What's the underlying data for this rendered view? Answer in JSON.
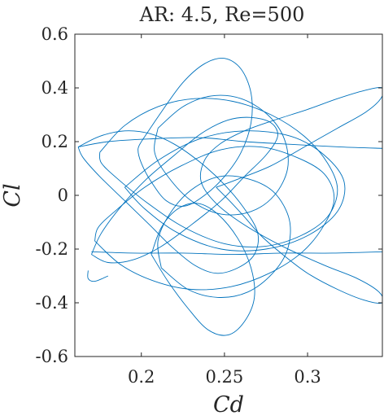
{
  "chart_data": {
    "type": "line",
    "title": "AR: 4.5, Re=500",
    "xlabel": "Cd",
    "ylabel": "Cl",
    "xlim": [
      0.16,
      0.345
    ],
    "ylim": [
      -0.6,
      0.6
    ],
    "xticks": [
      0.2,
      0.25,
      0.3
    ],
    "xtick_labels": [
      "0.2",
      "0.25",
      "0.3"
    ],
    "yticks": [
      -0.6,
      -0.4,
      -0.2,
      0,
      0.2,
      0.4,
      0.6
    ],
    "ytick_labels": [
      "-0.6",
      "-0.4",
      "-0.2",
      "0",
      "0.2",
      "0.4",
      "0.6"
    ],
    "grid": false,
    "line_color": "#0072BD",
    "axis_color": "#262626",
    "series": [
      {
        "x": [
          0.245,
          0.253,
          0.262,
          0.272,
          0.285,
          0.3,
          0.318,
          0.334,
          0.345,
          0.343,
          0.33,
          0.31,
          0.285,
          0.262,
          0.245,
          0.236,
          0.238,
          0.247,
          0.262,
          0.28,
          0.3,
          0.318,
          0.334,
          0.345,
          0.344,
          0.335,
          0.318,
          0.298,
          0.278,
          0.258,
          0.245
        ],
        "y": [
          0.03,
          -0.02,
          -0.08,
          -0.15,
          -0.22,
          -0.29,
          -0.35,
          -0.39,
          -0.4,
          -0.36,
          -0.31,
          -0.26,
          -0.19,
          -0.11,
          -0.03,
          0.05,
          0.13,
          0.19,
          0.24,
          0.28,
          0.32,
          0.36,
          0.39,
          0.4,
          0.36,
          0.31,
          0.25,
          0.18,
          0.11,
          0.06,
          0.03
        ]
      },
      {
        "x": [
          0.162,
          0.175,
          0.19,
          0.205,
          0.22,
          0.236,
          0.25,
          0.262,
          0.27,
          0.268,
          0.258,
          0.245,
          0.232,
          0.218,
          0.205,
          0.19,
          0.175,
          0.165,
          0.162
        ],
        "y": [
          0.18,
          0.22,
          0.24,
          0.23,
          0.19,
          0.12,
          0.04,
          -0.05,
          -0.14,
          -0.22,
          -0.27,
          -0.29,
          -0.26,
          -0.19,
          -0.11,
          -0.02,
          0.07,
          0.14,
          0.18
        ]
      },
      {
        "x": [
          0.17,
          0.18,
          0.195,
          0.212,
          0.23,
          0.248,
          0.262,
          0.275,
          0.282,
          0.278,
          0.266,
          0.252,
          0.236,
          0.22,
          0.203,
          0.188,
          0.176,
          0.17
        ],
        "y": [
          -0.22,
          -0.25,
          -0.24,
          -0.19,
          -0.11,
          -0.02,
          0.07,
          0.15,
          0.22,
          0.27,
          0.29,
          0.28,
          0.23,
          0.15,
          0.06,
          -0.04,
          -0.14,
          -0.22
        ]
      },
      {
        "x": [
          0.2,
          0.212,
          0.225,
          0.238,
          0.25,
          0.26,
          0.266,
          0.266,
          0.26,
          0.25,
          0.238,
          0.226,
          0.215,
          0.206,
          0.2,
          0.198,
          0.2
        ],
        "y": [
          0.2,
          0.31,
          0.42,
          0.49,
          0.51,
          0.47,
          0.38,
          0.27,
          0.16,
          0.07,
          0.0,
          -0.04,
          -0.02,
          0.05,
          0.12,
          0.17,
          0.2
        ]
      },
      {
        "x": [
          0.206,
          0.216,
          0.228,
          0.24,
          0.252,
          0.262,
          0.268,
          0.266,
          0.258,
          0.246,
          0.234,
          0.222,
          0.212,
          0.206
        ],
        "y": [
          -0.22,
          -0.32,
          -0.42,
          -0.5,
          -0.52,
          -0.47,
          -0.38,
          -0.27,
          -0.16,
          -0.07,
          -0.03,
          -0.05,
          -0.12,
          -0.22
        ]
      },
      {
        "x": [
          0.175,
          0.19,
          0.21,
          0.232,
          0.255,
          0.278,
          0.298,
          0.312,
          0.318,
          0.312,
          0.296,
          0.274,
          0.25,
          0.226,
          0.204,
          0.186,
          0.176,
          0.175
        ],
        "y": [
          0.16,
          0.26,
          0.33,
          0.36,
          0.35,
          0.3,
          0.22,
          0.12,
          0.02,
          -0.08,
          -0.15,
          -0.19,
          -0.18,
          -0.12,
          -0.03,
          0.06,
          0.12,
          0.16
        ]
      },
      {
        "x": [
          0.172,
          0.188,
          0.208,
          0.23,
          0.254,
          0.277,
          0.297,
          0.31,
          0.316,
          0.31,
          0.294,
          0.272,
          0.248,
          0.224,
          0.202,
          0.184,
          0.174,
          0.172
        ],
        "y": [
          -0.17,
          -0.26,
          -0.32,
          -0.35,
          -0.34,
          -0.29,
          -0.21,
          -0.11,
          -0.01,
          0.08,
          0.14,
          0.18,
          0.17,
          0.11,
          0.03,
          -0.06,
          -0.12,
          -0.17
        ]
      },
      {
        "x": [
          0.19,
          0.21,
          0.235,
          0.262,
          0.29,
          0.31,
          0.322,
          0.318,
          0.3,
          0.275,
          0.248,
          0.222,
          0.202,
          0.19
        ],
        "y": [
          0.03,
          0.13,
          0.21,
          0.24,
          0.22,
          0.15,
          0.05,
          -0.06,
          -0.15,
          -0.2,
          -0.2,
          -0.14,
          -0.05,
          0.03
        ]
      },
      {
        "x": [
          0.21,
          0.225,
          0.242,
          0.26,
          0.276,
          0.286,
          0.288,
          0.28,
          0.266,
          0.248,
          0.23,
          0.216,
          0.208,
          0.21
        ],
        "y": [
          0.25,
          0.33,
          0.37,
          0.36,
          0.3,
          0.21,
          0.1,
          0.0,
          -0.06,
          -0.07,
          -0.02,
          0.07,
          0.16,
          0.25
        ]
      },
      {
        "x": [
          0.212,
          0.228,
          0.246,
          0.264,
          0.279,
          0.288,
          0.289,
          0.28,
          0.265,
          0.247,
          0.23,
          0.217,
          0.21,
          0.212
        ],
        "y": [
          -0.27,
          -0.35,
          -0.38,
          -0.36,
          -0.29,
          -0.2,
          -0.09,
          0.01,
          0.06,
          0.07,
          0.02,
          -0.07,
          -0.17,
          -0.27
        ]
      },
      {
        "x": [
          0.162,
          0.18,
          0.205,
          0.235,
          0.262,
          0.29,
          0.32,
          0.345
        ],
        "y": [
          0.18,
          0.2,
          0.21,
          0.215,
          0.2,
          0.19,
          0.18,
          0.175
        ]
      },
      {
        "x": [
          0.17,
          0.195,
          0.225,
          0.255,
          0.285,
          0.315,
          0.345
        ],
        "y": [
          -0.21,
          -0.215,
          -0.215,
          -0.22,
          -0.215,
          -0.215,
          -0.21
        ]
      },
      {
        "x": [
          0.168,
          0.168,
          0.172,
          0.18
        ],
        "y": [
          -0.28,
          -0.31,
          -0.32,
          -0.3
        ]
      }
    ]
  }
}
